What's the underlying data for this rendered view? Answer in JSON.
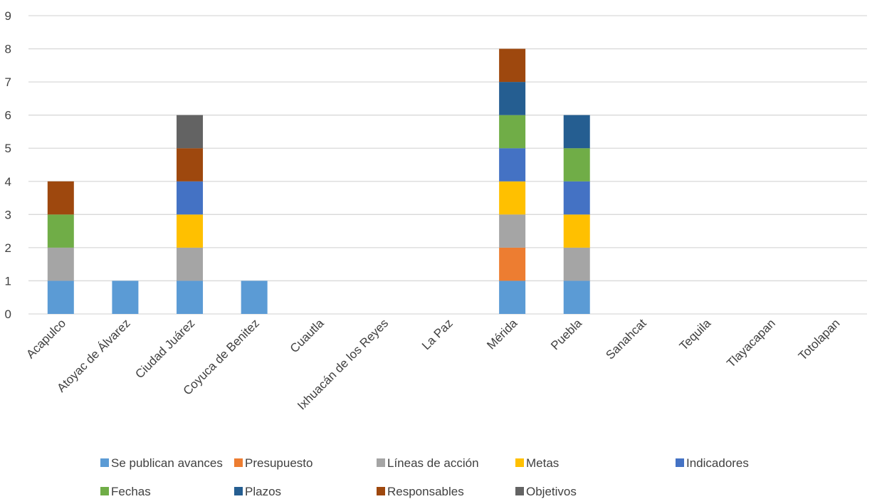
{
  "chart_data": {
    "type": "bar",
    "stacked": true,
    "title": "",
    "xlabel": "",
    "ylabel": "",
    "ylim": [
      0,
      9
    ],
    "yticks": [
      0,
      1,
      2,
      3,
      4,
      5,
      6,
      7,
      8,
      9
    ],
    "grid": true,
    "legend_position": "bottom",
    "categories": [
      "Acapulco",
      "Atoyac de Álvarez",
      "Ciudad Juárez",
      "Coyuca de Benitez",
      "Cuautla",
      "Ixhuacán de los Reyes",
      "La Paz",
      "Mérida",
      "Puebla",
      "Sanahcat",
      "Tequila",
      "Tlayacapan",
      "Totolapan"
    ],
    "series": [
      {
        "name": "Se publican avances",
        "color": "#5b9bd5",
        "values": [
          1,
          1,
          1,
          1,
          0,
          0,
          0,
          1,
          1,
          0,
          0,
          0,
          0
        ]
      },
      {
        "name": "Presupuesto",
        "color": "#ed7d31",
        "values": [
          0,
          0,
          0,
          0,
          0,
          0,
          0,
          1,
          0,
          0,
          0,
          0,
          0
        ]
      },
      {
        "name": "Líneas de acción",
        "color": "#a5a5a5",
        "values": [
          1,
          0,
          1,
          0,
          0,
          0,
          0,
          1,
          1,
          0,
          0,
          0,
          0
        ]
      },
      {
        "name": "Metas",
        "color": "#ffc000",
        "values": [
          0,
          0,
          1,
          0,
          0,
          0,
          0,
          1,
          1,
          0,
          0,
          0,
          0
        ]
      },
      {
        "name": "Indicadores",
        "color": "#4472c4",
        "values": [
          0,
          0,
          1,
          0,
          0,
          0,
          0,
          1,
          1,
          0,
          0,
          0,
          0
        ]
      },
      {
        "name": "Fechas",
        "color": "#70ad47",
        "values": [
          1,
          0,
          0,
          0,
          0,
          0,
          0,
          1,
          1,
          0,
          0,
          0,
          0
        ]
      },
      {
        "name": "Plazos",
        "color": "#255e91",
        "values": [
          0,
          0,
          0,
          0,
          0,
          0,
          0,
          1,
          1,
          0,
          0,
          0,
          0
        ]
      },
      {
        "name": "Responsables",
        "color": "#9e480e",
        "values": [
          1,
          0,
          1,
          0,
          0,
          0,
          0,
          1,
          0,
          0,
          0,
          0,
          0
        ]
      },
      {
        "name": "Objetivos",
        "color": "#636363",
        "values": [
          0,
          0,
          1,
          0,
          0,
          0,
          0,
          0,
          0,
          0,
          0,
          0,
          0
        ]
      }
    ],
    "gridline_color": "#d9d9d9",
    "text_color": "#404040"
  }
}
